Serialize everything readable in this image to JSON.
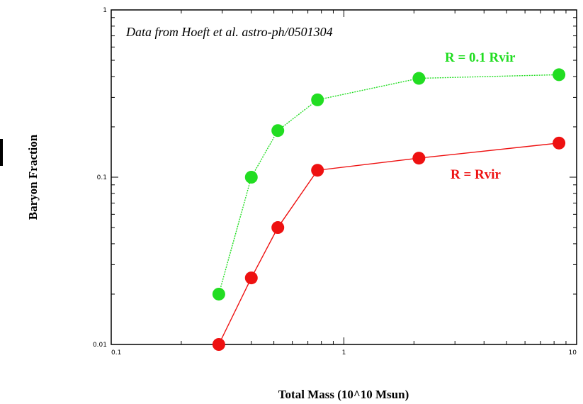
{
  "chart_data": {
    "type": "line",
    "title": "",
    "xlabel": "Total Mass (10^10 Msun)",
    "ylabel": "Baryon Fraction",
    "annotation": "Data from Hoeft et al. astro-ph/0501304",
    "xscale": "log",
    "yscale": "log",
    "xlim": [
      0.1,
      10
    ],
    "ylim": [
      0.01,
      1
    ],
    "x_ticks": [
      {
        "value": 0.1,
        "label": "0.1"
      },
      {
        "value": 1,
        "label": "1"
      },
      {
        "value": 10,
        "label": "10"
      }
    ],
    "y_ticks": [
      {
        "value": 0.01,
        "label": "0.01"
      },
      {
        "value": 0.1,
        "label": "0.1"
      },
      {
        "value": 1,
        "label": "1"
      }
    ],
    "grid": false,
    "series": [
      {
        "name": "R = 0.1 Rvir",
        "color": "#22dd22",
        "line_style": "dotted",
        "x": [
          0.29,
          0.4,
          0.52,
          0.77,
          2.1,
          8.4
        ],
        "y": [
          0.02,
          0.1,
          0.19,
          0.29,
          0.39,
          0.41
        ]
      },
      {
        "name": "R = Rvir",
        "color": "#ee1111",
        "line_style": "solid",
        "x": [
          0.29,
          0.4,
          0.52,
          0.77,
          2.1,
          8.4
        ],
        "y": [
          0.01,
          0.025,
          0.05,
          0.11,
          0.13,
          0.16
        ]
      }
    ]
  }
}
